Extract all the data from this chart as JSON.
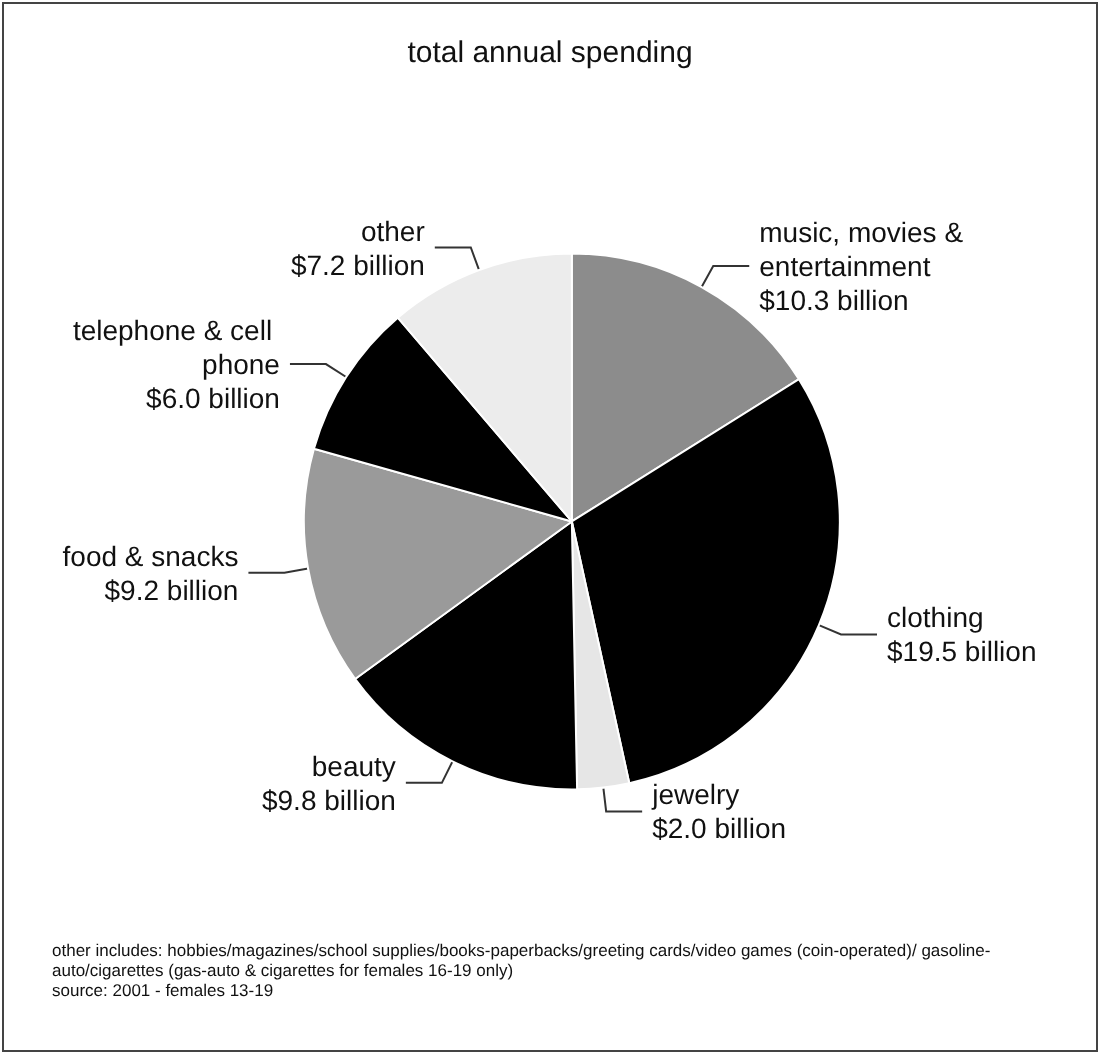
{
  "chart_data": {
    "type": "pie",
    "title": "total annual spending",
    "categories": [
      "music, movies & entertainment",
      "clothing",
      "jewelry",
      "beauty",
      "food & snacks",
      "telephone & cell phone",
      "other"
    ],
    "values": [
      10.3,
      19.5,
      2.0,
      9.8,
      9.2,
      6.0,
      7.2
    ],
    "value_labels": [
      "$10.3 billion",
      "$19.5 billion",
      "$2.0 billion",
      "$9.8 billion",
      "$9.2 billion",
      "$6.0 billion",
      "$7.2 billion"
    ],
    "colors": [
      "#8c8c8c",
      "#000000",
      "#e6e6e6",
      "#000000",
      "#9a9a9a",
      "#000000",
      "#ececec"
    ],
    "annotations": [
      "other includes:  hobbies/magazines/school supplies/books-paperbacks/greeting cards/video games (coin-operated)/ gasoline-auto/cigarettes (gas-auto & cigarettes for females 16-19 only)",
      "source: 2001 - females 13-19"
    ],
    "legend": false
  }
}
